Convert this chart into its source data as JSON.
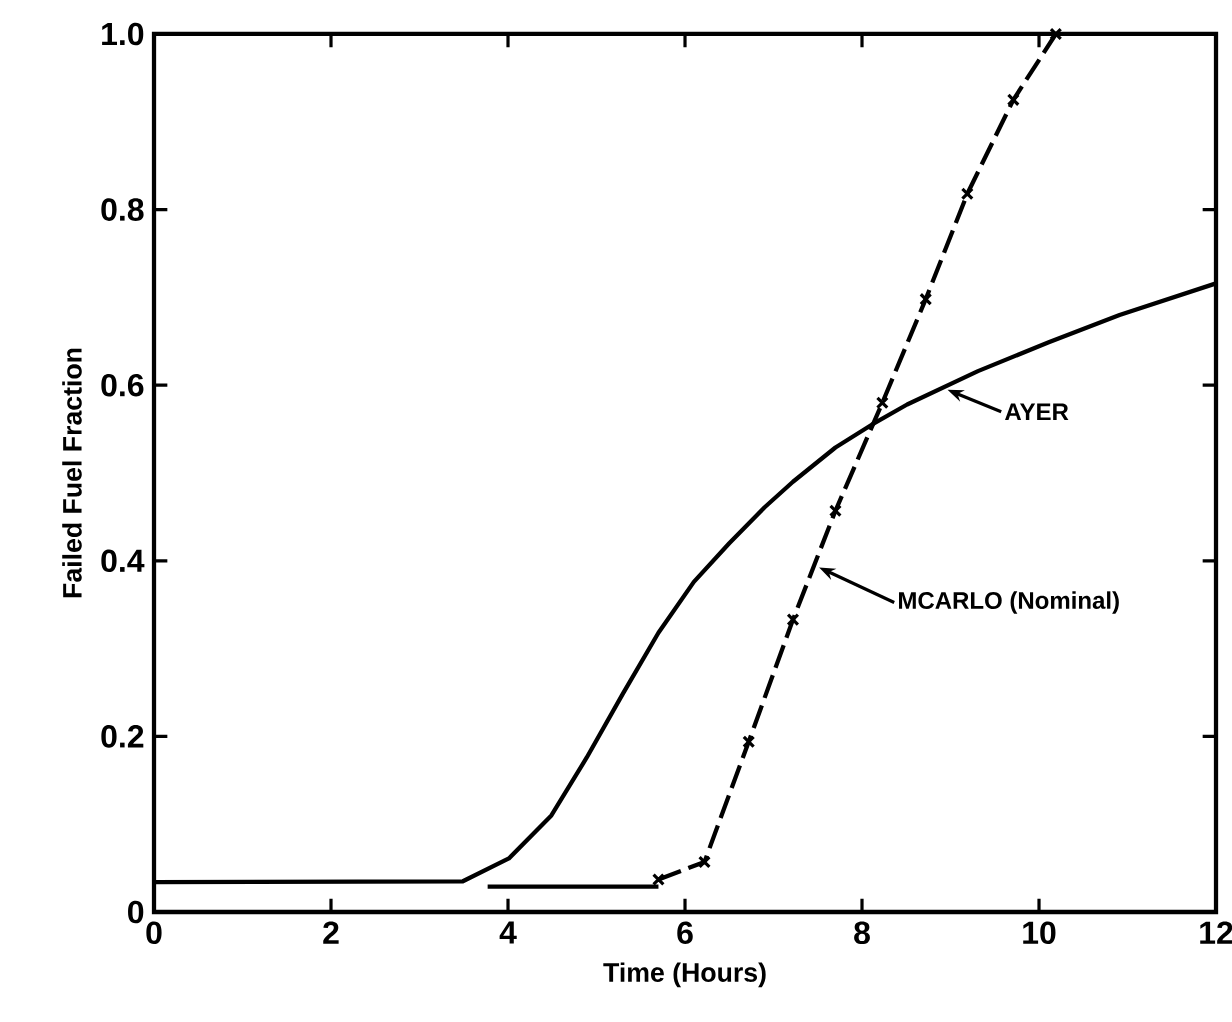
{
  "chart_data": {
    "type": "line",
    "xlabel": "Time (Hours)",
    "ylabel": "Failed Fuel Fraction",
    "xlim": [
      0,
      12
    ],
    "ylim": [
      0,
      1
    ],
    "xticks": [
      0,
      2,
      4,
      6,
      8,
      10,
      12
    ],
    "yticks": [
      0,
      0.2,
      0.4,
      0.6,
      0.8,
      {
        "value": 1,
        "label": "1.0"
      }
    ],
    "grid": false,
    "legend": "right",
    "series": [
      {
        "name": "AYER",
        "color": "#000000",
        "marker": "none",
        "line_style": "solid",
        "x": [
          0,
          3.49,
          4.01,
          4.49,
          4.89,
          5.3,
          5.7,
          6.1,
          6.5,
          6.9,
          7.22,
          7.7,
          8.11,
          8.51,
          9.31,
          10.11,
          10.91,
          12
        ],
        "values": [
          0.034,
          0.035,
          0.061,
          0.11,
          0.176,
          0.249,
          0.318,
          0.376,
          0.42,
          0.461,
          0.49,
          0.529,
          0.555,
          0.578,
          0.616,
          0.649,
          0.68,
          0.716
        ]
      },
      {
        "name": "MCARLO (Nominal)",
        "color": "#000000",
        "marker": "cross",
        "line_style": "dashed",
        "x": [
          5.7,
          6.22,
          6.72,
          7.22,
          7.7,
          8.23,
          8.72,
          9.19,
          9.71,
          10.19
        ],
        "values": [
          0.037,
          0.057,
          0.194,
          0.333,
          0.457,
          0.58,
          0.698,
          0.818,
          0.925,
          1.0
        ]
      },
      {
        "color": "#000000",
        "marker": "none",
        "line_style": "solid",
        "x": [
          3.77,
          5.7
        ],
        "values": [
          0.029,
          0.029
        ]
      }
    ]
  }
}
